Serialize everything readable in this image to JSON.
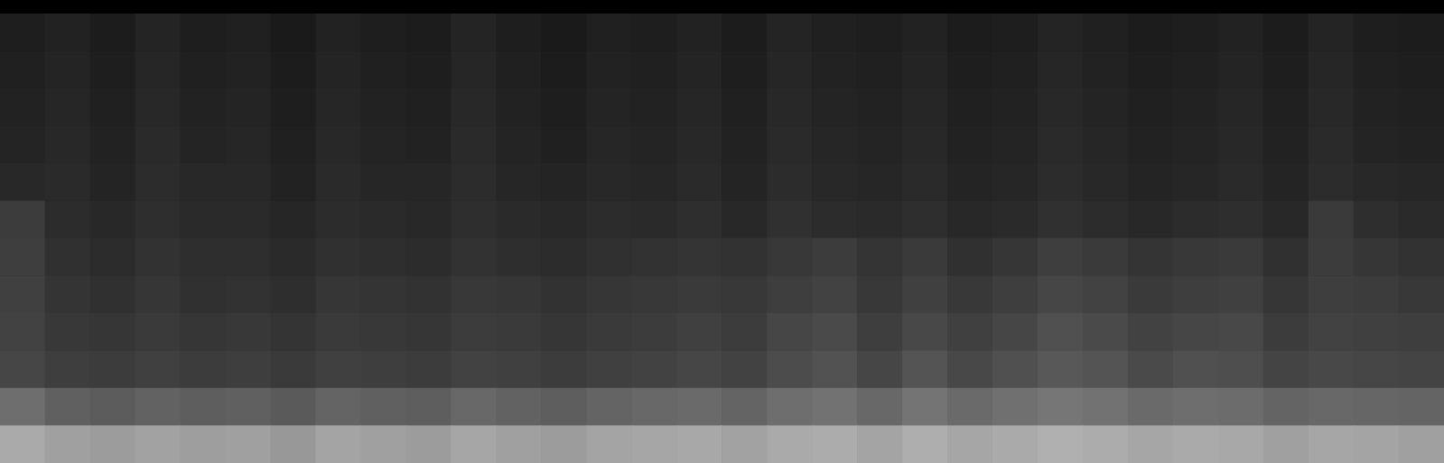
{
  "chart_data": {
    "type": "heatmap",
    "tick_labels": false,
    "grid": false,
    "value_range": [
      0,
      255
    ],
    "cells": [
      [
        30,
        34,
        28,
        36,
        30,
        32,
        26,
        34,
        30,
        28,
        36,
        30,
        26,
        32,
        30,
        34,
        28,
        36,
        32,
        30,
        34,
        28,
        30,
        36,
        32,
        28,
        30,
        34,
        28,
        36,
        30,
        28
      ],
      [
        32,
        36,
        30,
        38,
        32,
        34,
        28,
        36,
        32,
        30,
        38,
        32,
        28,
        34,
        32,
        36,
        30,
        38,
        34,
        32,
        36,
        30,
        32,
        38,
        34,
        30,
        32,
        36,
        30,
        38,
        32,
        30
      ],
      [
        34,
        38,
        32,
        40,
        34,
        36,
        30,
        38,
        34,
        32,
        40,
        34,
        30,
        36,
        34,
        38,
        32,
        40,
        36,
        34,
        38,
        32,
        34,
        40,
        36,
        32,
        34,
        38,
        32,
        40,
        34,
        32
      ],
      [
        36,
        40,
        34,
        42,
        36,
        38,
        32,
        40,
        36,
        34,
        42,
        36,
        32,
        38,
        36,
        40,
        34,
        42,
        38,
        36,
        40,
        34,
        36,
        42,
        38,
        34,
        36,
        40,
        34,
        42,
        36,
        34
      ],
      [
        40,
        42,
        36,
        44,
        40,
        40,
        34,
        42,
        38,
        38,
        44,
        38,
        36,
        40,
        38,
        42,
        36,
        44,
        40,
        38,
        42,
        36,
        38,
        44,
        40,
        36,
        38,
        42,
        36,
        44,
        40,
        38
      ],
      [
        60,
        44,
        40,
        46,
        42,
        42,
        38,
        44,
        42,
        40,
        46,
        42,
        40,
        44,
        42,
        46,
        40,
        48,
        44,
        42,
        46,
        40,
        42,
        48,
        44,
        40,
        44,
        46,
        40,
        58,
        46,
        42
      ],
      [
        62,
        48,
        44,
        50,
        46,
        46,
        42,
        48,
        46,
        44,
        50,
        46,
        44,
        48,
        50,
        52,
        50,
        56,
        60,
        52,
        58,
        48,
        54,
        62,
        58,
        52,
        56,
        58,
        48,
        60,
        54,
        50
      ],
      [
        64,
        52,
        48,
        54,
        48,
        50,
        46,
        54,
        52,
        50,
        56,
        54,
        50,
        54,
        56,
        58,
        56,
        62,
        66,
        56,
        64,
        56,
        62,
        70,
        66,
        58,
        62,
        64,
        54,
        62,
        60,
        56
      ],
      [
        66,
        56,
        54,
        58,
        54,
        56,
        52,
        58,
        56,
        54,
        60,
        58,
        54,
        58,
        60,
        64,
        60,
        70,
        74,
        62,
        72,
        64,
        70,
        80,
        74,
        66,
        70,
        72,
        60,
        66,
        64,
        62
      ],
      [
        70,
        62,
        60,
        64,
        60,
        62,
        58,
        64,
        62,
        60,
        66,
        64,
        60,
        64,
        66,
        70,
        66,
        76,
        82,
        70,
        84,
        72,
        80,
        88,
        84,
        74,
        80,
        78,
        68,
        72,
        70,
        68
      ],
      [
        110,
        96,
        92,
        98,
        94,
        96,
        90,
        100,
        96,
        94,
        104,
        98,
        94,
        100,
        104,
        106,
        100,
        110,
        114,
        104,
        116,
        106,
        112,
        118,
        114,
        106,
        110,
        108,
        100,
        104,
        102,
        100
      ],
      [
        170,
        160,
        156,
        162,
        158,
        160,
        152,
        164,
        160,
        156,
        166,
        160,
        156,
        164,
        166,
        168,
        162,
        170,
        172,
        164,
        174,
        166,
        170,
        176,
        172,
        166,
        170,
        168,
        160,
        166,
        164,
        160
      ]
    ]
  }
}
